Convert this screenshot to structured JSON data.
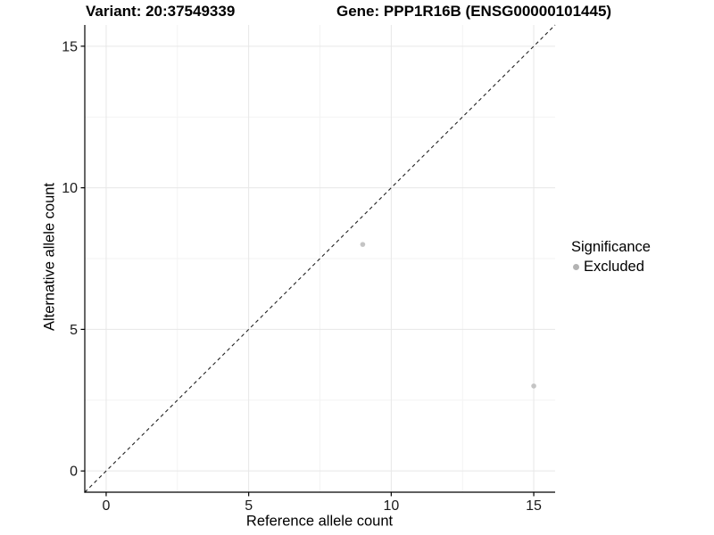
{
  "chart_data": {
    "type": "scatter",
    "titles": {
      "left": "Variant: 20:37549339",
      "right": "Gene: PPP1R16B (ENSG00000101445)"
    },
    "xlabel": "Reference allele count",
    "ylabel": "Alternative allele count",
    "axes": {
      "xlim": [
        -0.75,
        15.75
      ],
      "ylim": [
        -0.75,
        15.75
      ],
      "xticks": [
        0,
        5,
        10,
        15
      ],
      "yticks": [
        0,
        5,
        10,
        15
      ],
      "x_minor": [
        2.5,
        7.5,
        12.5
      ],
      "y_minor": [
        2.5,
        7.5,
        12.5
      ],
      "grid": "major+minor"
    },
    "series": [
      {
        "name": "Excluded",
        "color": "#c4c4c4",
        "points": [
          {
            "x": 9,
            "y": 8
          },
          {
            "x": 15,
            "y": 3
          }
        ]
      }
    ],
    "reference_line": {
      "kind": "identity y=x",
      "slope": 1,
      "intercept": 0,
      "style": "dashed",
      "color": "#222222"
    },
    "legend": {
      "title": "Significance",
      "position": "right",
      "entries": [
        {
          "label": "Excluded",
          "color": "#b3b3b3"
        }
      ]
    }
  },
  "style": {
    "background": "#ffffff",
    "grid_major": "#e7e7e7",
    "grid_minor": "#f3f3f3",
    "axis_line": "#000000",
    "tick_label": "#1a1a1a",
    "title_color": "#000000"
  }
}
